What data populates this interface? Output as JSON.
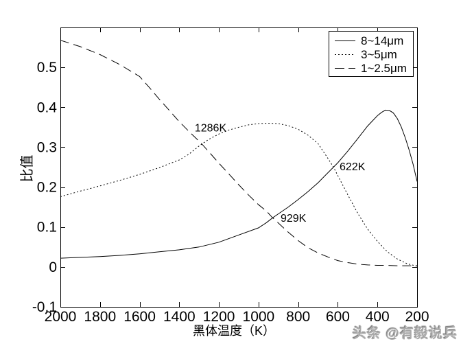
{
  "figure": {
    "background": "#ffffff",
    "frame_color": "#000000"
  },
  "watermark": {
    "text": "头条 @有毅说兵",
    "color": "#ababab"
  },
  "chart_data": {
    "type": "line",
    "title": "",
    "xlabel": "黑体温度（K）",
    "ylabel": "比值",
    "xlim": [
      2000,
      200
    ],
    "ylim": [
      -0.1,
      0.6
    ],
    "x_axis_reversed": true,
    "grid": false,
    "axis_color": "#000000",
    "x_ticks": [
      2000,
      1800,
      1600,
      1400,
      1200,
      1000,
      800,
      600,
      400,
      200
    ],
    "y_ticks": [
      -0.1,
      0,
      0.1,
      0.2,
      0.3,
      0.4,
      0.5
    ],
    "legend": {
      "position": "top-right",
      "border": true
    },
    "series": [
      {
        "name": "8~14μm",
        "style": "solid",
        "color": "#000000",
        "points": [
          [
            2000,
            0.022
          ],
          [
            1900,
            0.024
          ],
          [
            1800,
            0.026
          ],
          [
            1700,
            0.029
          ],
          [
            1600,
            0.033
          ],
          [
            1500,
            0.038
          ],
          [
            1400,
            0.043
          ],
          [
            1300,
            0.05
          ],
          [
            1200,
            0.062
          ],
          [
            1100,
            0.08
          ],
          [
            1000,
            0.098
          ],
          [
            960,
            0.111
          ],
          [
            929,
            0.123
          ],
          [
            900,
            0.133
          ],
          [
            850,
            0.15
          ],
          [
            800,
            0.169
          ],
          [
            750,
            0.189
          ],
          [
            700,
            0.211
          ],
          [
            650,
            0.236
          ],
          [
            622,
            0.25
          ],
          [
            600,
            0.261
          ],
          [
            550,
            0.29
          ],
          [
            500,
            0.321
          ],
          [
            450,
            0.353
          ],
          [
            400,
            0.379
          ],
          [
            380,
            0.387
          ],
          [
            360,
            0.393
          ],
          [
            340,
            0.392
          ],
          [
            320,
            0.386
          ],
          [
            300,
            0.372
          ],
          [
            280,
            0.351
          ],
          [
            260,
            0.324
          ],
          [
            240,
            0.293
          ],
          [
            220,
            0.257
          ],
          [
            200,
            0.214
          ]
        ]
      },
      {
        "name": "3~5μm",
        "style": "dotted",
        "color": "#000000",
        "points": [
          [
            2000,
            0.176
          ],
          [
            1900,
            0.19
          ],
          [
            1800,
            0.203
          ],
          [
            1700,
            0.217
          ],
          [
            1600,
            0.232
          ],
          [
            1500,
            0.249
          ],
          [
            1400,
            0.268
          ],
          [
            1350,
            0.283
          ],
          [
            1300,
            0.303
          ],
          [
            1286,
            0.308
          ],
          [
            1250,
            0.32
          ],
          [
            1200,
            0.333
          ],
          [
            1150,
            0.343
          ],
          [
            1100,
            0.35
          ],
          [
            1050,
            0.356
          ],
          [
            1000,
            0.359
          ],
          [
            950,
            0.36
          ],
          [
            900,
            0.359
          ],
          [
            850,
            0.354
          ],
          [
            800,
            0.345
          ],
          [
            750,
            0.33
          ],
          [
            700,
            0.309
          ],
          [
            650,
            0.272
          ],
          [
            622,
            0.25
          ],
          [
            600,
            0.229
          ],
          [
            550,
            0.181
          ],
          [
            500,
            0.135
          ],
          [
            450,
            0.095
          ],
          [
            400,
            0.064
          ],
          [
            350,
            0.038
          ],
          [
            300,
            0.02
          ],
          [
            250,
            0.008
          ],
          [
            200,
            0.002
          ]
        ]
      },
      {
        "name": "1~2.5μm",
        "style": "dashed",
        "color": "#000000",
        "points": [
          [
            2000,
            0.568
          ],
          [
            1900,
            0.552
          ],
          [
            1800,
            0.532
          ],
          [
            1700,
            0.507
          ],
          [
            1600,
            0.477
          ],
          [
            1550,
            0.449
          ],
          [
            1500,
            0.42
          ],
          [
            1450,
            0.392
          ],
          [
            1400,
            0.364
          ],
          [
            1350,
            0.339
          ],
          [
            1300,
            0.315
          ],
          [
            1286,
            0.308
          ],
          [
            1250,
            0.288
          ],
          [
            1200,
            0.26
          ],
          [
            1150,
            0.233
          ],
          [
            1100,
            0.206
          ],
          [
            1050,
            0.18
          ],
          [
            1000,
            0.156
          ],
          [
            960,
            0.14
          ],
          [
            929,
            0.123
          ],
          [
            900,
            0.11
          ],
          [
            850,
            0.087
          ],
          [
            800,
            0.066
          ],
          [
            750,
            0.048
          ],
          [
            700,
            0.035
          ],
          [
            650,
            0.025
          ],
          [
            600,
            0.016
          ],
          [
            550,
            0.011
          ],
          [
            500,
            0.007
          ],
          [
            450,
            0.005
          ],
          [
            400,
            0.004
          ],
          [
            350,
            0.004
          ],
          [
            300,
            0.003
          ],
          [
            250,
            0.003
          ],
          [
            200,
            0.003
          ]
        ]
      }
    ],
    "annotations": [
      {
        "text": "1286K",
        "x": 1322,
        "y": 0.35
      },
      {
        "text": "929K",
        "x": 889,
        "y": 0.124
      },
      {
        "text": "622K",
        "x": 591,
        "y": 0.253
      }
    ]
  }
}
